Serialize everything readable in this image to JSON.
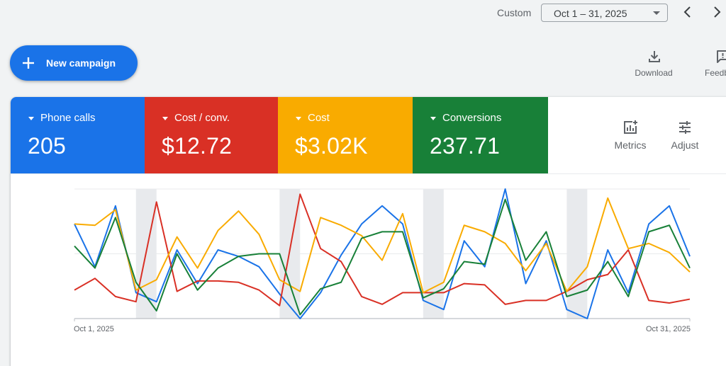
{
  "header": {
    "date_range_label": "Custom",
    "date_range_value": "Oct 1 – 31, 2025",
    "prev_icon": "chevron-left-icon",
    "next_icon": "chevron-right-icon"
  },
  "toolbar": {
    "new_campaign_label": "New campaign",
    "new_campaign_icon": "plus-icon",
    "download_label": "Download",
    "download_icon": "download-icon",
    "feedback_label": "Feedback",
    "feedback_icon": "feedback-icon"
  },
  "scorecards": [
    {
      "label": "Phone calls",
      "value": "205",
      "color": "#1a73e8"
    },
    {
      "label": "Cost / conv.",
      "value": "$12.72",
      "color": "#d93025"
    },
    {
      "label": "Cost",
      "value": "$3.02K",
      "color": "#f9ab00"
    },
    {
      "label": "Conversions",
      "value": "237.71",
      "color": "#188038"
    }
  ],
  "card_actions": {
    "metrics_label": "Metrics",
    "metrics_icon": "add-chart-icon",
    "adjust_label": "Adjust",
    "adjust_icon": "tune-icon"
  },
  "chart_data": {
    "type": "line",
    "title": "",
    "xlabel": "",
    "ylabel": "",
    "y_scale_note": "relative index per series (individual y-axes hidden)",
    "x": [
      1,
      2,
      3,
      4,
      5,
      6,
      7,
      8,
      9,
      10,
      11,
      12,
      13,
      14,
      15,
      16,
      17,
      18,
      19,
      20,
      21,
      22,
      23,
      24,
      25,
      26,
      27,
      28,
      29,
      30,
      31
    ],
    "x_tick_labels": [
      "Oct 1, 2025",
      "Oct 31, 2025"
    ],
    "xlim": [
      1,
      31
    ],
    "ylim": [
      0,
      100
    ],
    "grid": true,
    "gridlines_y": [
      0,
      50,
      100
    ],
    "weekend_bands": [
      [
        4,
        5
      ],
      [
        11,
        12
      ],
      [
        18,
        19
      ],
      [
        25,
        26
      ]
    ],
    "legend": "none",
    "series": [
      {
        "name": "Phone calls",
        "color": "#1a73e8",
        "values": [
          73,
          40,
          87,
          20,
          13,
          53,
          27,
          53,
          48,
          40,
          19,
          0,
          20,
          49,
          73,
          87,
          73,
          14,
          7,
          60,
          40,
          100,
          27,
          60,
          7,
          0,
          53,
          20,
          73,
          87,
          48
        ]
      },
      {
        "name": "Cost / conv.",
        "color": "#d93025",
        "values": [
          22,
          31,
          17,
          13,
          90,
          21,
          29,
          29,
          28,
          22,
          10,
          96,
          54,
          44,
          17,
          11,
          20,
          20,
          20,
          27,
          26,
          11,
          14,
          14,
          21,
          30,
          34,
          53,
          14,
          12,
          15
        ]
      },
      {
        "name": "Cost",
        "color": "#f9ab00",
        "values": [
          73,
          72,
          84,
          22,
          30,
          63,
          39,
          68,
          83,
          65,
          30,
          21,
          78,
          72,
          64,
          45,
          81,
          20,
          28,
          72,
          67,
          58,
          37,
          58,
          21,
          40,
          93,
          54,
          58,
          51,
          36
        ]
      },
      {
        "name": "Conversions",
        "color": "#188038",
        "values": [
          56,
          39,
          78,
          28,
          6,
          50,
          22,
          39,
          48,
          50,
          50,
          3,
          23,
          28,
          62,
          67,
          67,
          16,
          23,
          44,
          42,
          92,
          45,
          67,
          17,
          22,
          44,
          17,
          67,
          72,
          39
        ]
      }
    ]
  }
}
